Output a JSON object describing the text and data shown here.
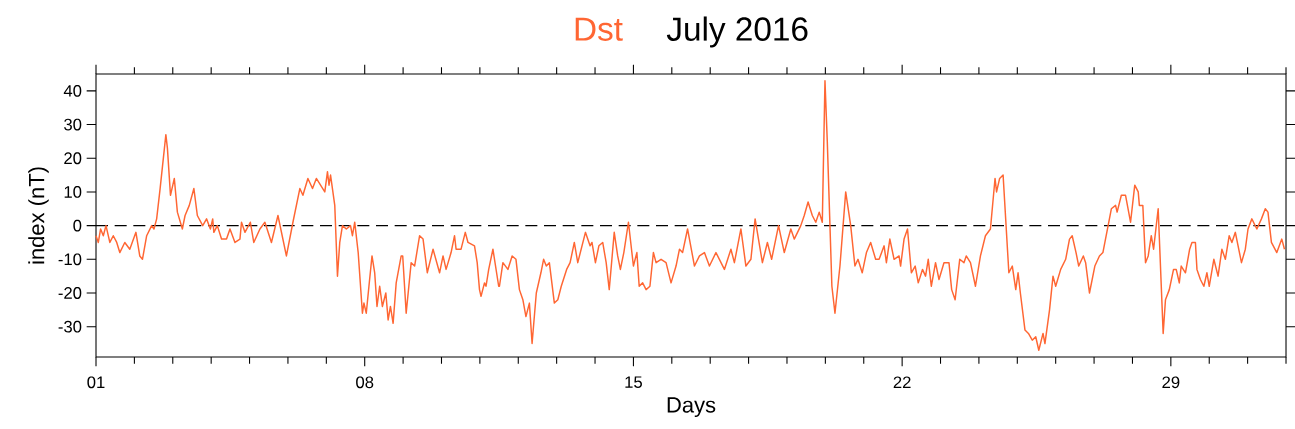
{
  "chart_data": {
    "type": "line",
    "title": "July 2016",
    "xlabel": "Days",
    "ylabel": "index (nT)",
    "legend": "top",
    "xlim": [
      1,
      32
    ],
    "ylim": [
      -39,
      45
    ],
    "xticks": [
      {
        "value": 1,
        "label": "01"
      },
      {
        "value": 2,
        "label": null
      },
      {
        "value": 3,
        "label": null
      },
      {
        "value": 4,
        "label": null
      },
      {
        "value": 5,
        "label": null
      },
      {
        "value": 6,
        "label": null
      },
      {
        "value": 7,
        "label": null
      },
      {
        "value": 8,
        "label": "08"
      },
      {
        "value": 9,
        "label": null
      },
      {
        "value": 10,
        "label": null
      },
      {
        "value": 11,
        "label": null
      },
      {
        "value": 12,
        "label": null
      },
      {
        "value": 13,
        "label": null
      },
      {
        "value": 14,
        "label": null
      },
      {
        "value": 15,
        "label": "15"
      },
      {
        "value": 16,
        "label": null
      },
      {
        "value": 17,
        "label": null
      },
      {
        "value": 18,
        "label": null
      },
      {
        "value": 19,
        "label": null
      },
      {
        "value": 20,
        "label": null
      },
      {
        "value": 21,
        "label": null
      },
      {
        "value": 22,
        "label": "22"
      },
      {
        "value": 23,
        "label": null
      },
      {
        "value": 24,
        "label": null
      },
      {
        "value": 25,
        "label": null
      },
      {
        "value": 26,
        "label": null
      },
      {
        "value": 27,
        "label": null
      },
      {
        "value": 28,
        "label": null
      },
      {
        "value": 29,
        "label": "29"
      },
      {
        "value": 30,
        "label": null
      },
      {
        "value": 31,
        "label": null
      },
      {
        "value": 32,
        "label": null
      }
    ],
    "yticks": [
      -30,
      -20,
      -10,
      0,
      10,
      20,
      30,
      40
    ],
    "ref_lines": [
      {
        "axis": "y",
        "value": 0,
        "color": "#000000",
        "line_style": "dashed"
      }
    ],
    "series": [
      {
        "name": "Dst",
        "color": "#ff6633",
        "x": [
          1.0,
          1.06,
          1.12,
          1.19,
          1.26,
          1.36,
          1.45,
          1.54,
          1.62,
          1.75,
          1.88,
          2.04,
          2.14,
          2.21,
          2.32,
          2.45,
          2.51,
          2.58,
          2.67,
          2.82,
          2.86,
          2.94,
          3.04,
          3.12,
          3.25,
          3.32,
          3.43,
          3.55,
          3.64,
          3.78,
          3.88,
          3.98,
          4.04,
          4.07,
          4.16,
          4.27,
          4.4,
          4.49,
          4.62,
          4.75,
          4.79,
          4.88,
          5.02,
          5.11,
          5.27,
          5.4,
          5.57,
          5.74,
          5.96,
          6.13,
          6.31,
          6.39,
          6.52,
          6.64,
          6.74,
          6.96,
          7.03,
          7.07,
          7.11,
          7.22,
          7.29,
          7.35,
          7.42,
          7.52,
          7.63,
          7.68,
          7.74,
          7.83,
          7.94,
          7.98,
          8.04,
          8.11,
          8.19,
          8.26,
          8.32,
          8.39,
          8.46,
          8.55,
          8.61,
          8.67,
          8.74,
          8.82,
          8.95,
          8.99,
          9.08,
          9.21,
          9.3,
          9.43,
          9.52,
          9.63,
          9.78,
          9.95,
          10.04,
          10.12,
          10.25,
          10.34,
          10.38,
          10.51,
          10.62,
          10.69,
          10.86,
          10.93,
          10.99,
          11.03,
          11.12,
          11.16,
          11.23,
          11.34,
          11.49,
          11.51,
          11.6,
          11.73,
          11.84,
          11.94,
          12.03,
          12.12,
          12.2,
          12.29,
          12.36,
          12.47,
          12.59,
          12.66,
          12.73,
          12.81,
          12.94,
          13.03,
          13.12,
          13.26,
          13.35,
          13.46,
          13.55,
          13.75,
          13.87,
          13.92,
          14.01,
          14.1,
          14.2,
          14.29,
          14.37,
          14.5,
          14.59,
          14.66,
          14.75,
          14.87,
          15.0,
          15.09,
          15.15,
          15.24,
          15.33,
          15.43,
          15.52,
          15.59,
          15.72,
          15.85,
          15.98,
          16.11,
          16.2,
          16.28,
          16.41,
          16.59,
          16.72,
          16.85,
          16.98,
          17.15,
          17.37,
          17.54,
          17.63,
          17.8,
          17.93,
          18.06,
          18.17,
          18.36,
          18.49,
          18.6,
          18.78,
          18.93,
          19.1,
          19.19,
          19.36,
          19.45,
          19.55,
          19.66,
          19.75,
          19.84,
          19.92,
          19.99,
          20.05,
          20.17,
          20.25,
          20.38,
          20.53,
          20.66,
          20.77,
          20.85,
          20.96,
          21.07,
          21.18,
          21.31,
          21.4,
          21.53,
          21.59,
          21.68,
          21.79,
          21.92,
          21.96,
          22.05,
          22.14,
          22.24,
          22.34,
          22.42,
          22.53,
          22.61,
          22.68,
          22.76,
          22.87,
          22.96,
          23.09,
          23.22,
          23.29,
          23.38,
          23.5,
          23.61,
          23.67,
          23.78,
          23.91,
          24.04,
          24.17,
          24.3,
          24.42,
          24.46,
          24.54,
          24.63,
          24.78,
          24.87,
          24.96,
          25.02,
          25.08,
          25.2,
          25.29,
          25.39,
          25.48,
          25.56,
          25.67,
          25.72,
          25.84,
          25.93,
          26.0,
          26.13,
          26.26,
          26.36,
          26.43,
          26.53,
          26.6,
          26.72,
          26.78,
          26.88,
          27.02,
          27.14,
          27.23,
          27.45,
          27.56,
          27.6,
          27.71,
          27.82,
          27.95,
          28.06,
          28.15,
          28.18,
          28.27,
          28.34,
          28.41,
          28.49,
          28.55,
          28.67,
          28.8,
          28.86,
          28.96,
          29.07,
          29.14,
          29.22,
          29.27,
          29.38,
          29.49,
          29.55,
          29.64,
          29.68,
          29.77,
          29.86,
          29.94,
          30.0,
          30.12,
          30.23,
          30.33,
          30.42,
          30.52,
          30.59,
          30.68,
          30.84,
          30.94,
          31.01,
          31.11,
          31.24,
          31.36,
          31.46,
          31.53,
          31.62,
          31.76,
          31.89,
          31.96
        ],
        "values": [
          -3,
          -5,
          -1,
          -3,
          0,
          -5,
          -3,
          -5,
          -8,
          -5,
          -7,
          -2,
          -9,
          -10,
          -3,
          0,
          -1,
          2,
          11,
          27,
          23,
          9,
          14,
          4,
          -1,
          3,
          6,
          11,
          3,
          0,
          2,
          -1,
          2,
          -2,
          0,
          -4,
          -4,
          -1,
          -5,
          -4,
          1,
          -2,
          1,
          -5,
          -1,
          1,
          -5,
          3,
          -9,
          1,
          11,
          9,
          14,
          11,
          14,
          10,
          16,
          12,
          15,
          6,
          -15,
          -5,
          0,
          -1,
          0,
          -3,
          1,
          -8,
          -26,
          -23,
          -26,
          -18,
          -9,
          -14,
          -24,
          -18,
          -24,
          -20,
          -28,
          -24,
          -29,
          -17,
          -9,
          -9,
          -26,
          -11,
          -12,
          -3,
          -4,
          -14,
          -7,
          -14,
          -9,
          -13,
          -8,
          -3,
          -7,
          -7,
          -2,
          -5,
          -6,
          -11,
          -19,
          -21,
          -17,
          -18,
          -13,
          -7,
          -18,
          -18,
          -11,
          -13,
          -9,
          -10,
          -19,
          -22,
          -27,
          -23,
          -35,
          -20,
          -14,
          -10,
          -12,
          -11,
          -23,
          -22,
          -18,
          -13,
          -11,
          -5,
          -11,
          -2,
          -6,
          -5,
          -11,
          -6,
          -5,
          -11,
          -19,
          -2,
          -9,
          -13,
          -8,
          1,
          -12,
          -8,
          -18,
          -17,
          -19,
          -18,
          -8,
          -11,
          -10,
          -11,
          -17,
          -12,
          -7,
          -8,
          -1,
          -12,
          -9,
          -8,
          -12,
          -8,
          -13,
          -7,
          -11,
          -1,
          -12,
          -10,
          2,
          -11,
          -5,
          -10,
          0,
          -8,
          -1,
          -4,
          0,
          3,
          7,
          3,
          1,
          4,
          1,
          43,
          25,
          -18,
          -26,
          -12,
          10,
          0,
          -12,
          -10,
          -14,
          -8,
          -5,
          -10,
          -10,
          -6,
          -11,
          -4,
          -10,
          -9,
          -12,
          -4,
          -1,
          -14,
          -12,
          -17,
          -13,
          -15,
          -10,
          -18,
          -11,
          -16,
          -11,
          -11,
          -19,
          -22,
          -10,
          -11,
          -9,
          -11,
          -18,
          -9,
          -3,
          -1,
          14,
          10,
          14,
          15,
          -14,
          -12,
          -19,
          -14,
          -20,
          -31,
          -32,
          -34,
          -33,
          -37,
          -32,
          -35,
          -25,
          -15,
          -18,
          -13,
          -10,
          -4,
          -3,
          -8,
          -12,
          -9,
          -11,
          -20,
          -12,
          -9,
          -8,
          5,
          6,
          4,
          9,
          9,
          1,
          12,
          10,
          6,
          6,
          -11,
          -9,
          -3,
          -7,
          5,
          -32,
          -22,
          -19,
          -13,
          -13,
          -17,
          -12,
          -14,
          -7,
          -5,
          -5,
          -13,
          -16,
          -18,
          -14,
          -18,
          -10,
          -15,
          -7,
          -10,
          -3,
          -5,
          -2,
          -11,
          -7,
          -1,
          2,
          -1,
          2,
          5,
          4,
          -5,
          -8,
          -4,
          -7
        ]
      }
    ]
  }
}
